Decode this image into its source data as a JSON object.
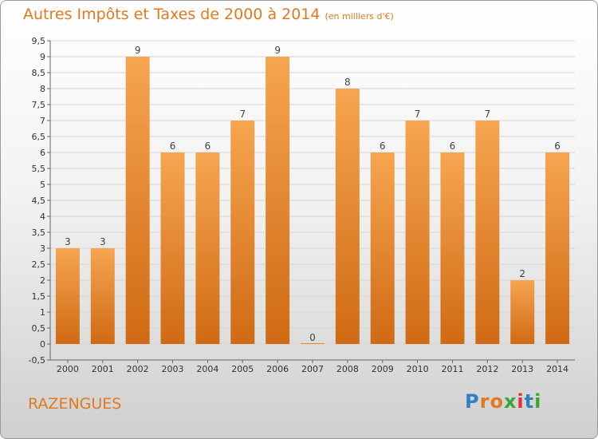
{
  "page": {
    "title": "Autres Impôts et Taxes de 2000 à 2014",
    "unit": "(en milliers d'€)",
    "commune": "RAZENGUES",
    "logo": "Proxiti"
  },
  "colors": {
    "accent": "#e07a1f",
    "bar_light": "#f6a550",
    "bar_dark": "#d06a14"
  },
  "chart_data": {
    "type": "bar",
    "categories": [
      "2000",
      "2001",
      "2002",
      "2003",
      "2004",
      "2005",
      "2006",
      "2007",
      "2008",
      "2009",
      "2010",
      "2011",
      "2012",
      "2013",
      "2014"
    ],
    "values": [
      3,
      3,
      9,
      6,
      6,
      7,
      9,
      0,
      8,
      6,
      7,
      6,
      7,
      2,
      6
    ],
    "title": "Autres Impôts et Taxes de 2000 à 2014",
    "xlabel": "",
    "ylabel": "",
    "ylim": [
      -0.5,
      9.5
    ],
    "yticks": [
      "-0,5",
      "0",
      "0,5",
      "1",
      "1,5",
      "2",
      "2,5",
      "3",
      "3,5",
      "4",
      "4,5",
      "5",
      "5,5",
      "6",
      "6,5",
      "7",
      "7,5",
      "8",
      "8,5",
      "9",
      "9,5"
    ],
    "grid": true,
    "legend": "none"
  }
}
